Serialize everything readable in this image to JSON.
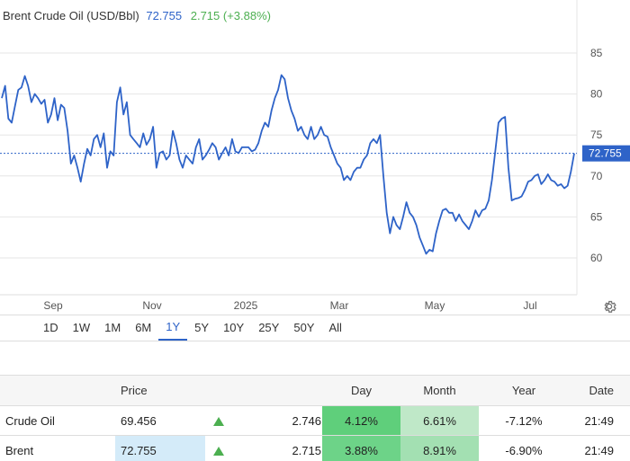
{
  "header": {
    "title": "Brent Crude Oil (USD/Bbl)",
    "price": "72.755",
    "change": "2.715 (+3.88%)"
  },
  "chart_data": {
    "type": "line",
    "title": "Brent Crude Oil (USD/Bbl)",
    "xlabel": "",
    "ylabel": "",
    "ylim": [
      55.5,
      89.5
    ],
    "y_ticks": [
      "85",
      "80",
      "75",
      "70",
      "65",
      "60"
    ],
    "x_ticks": [
      "Sep",
      "Nov",
      "2025",
      "Mar",
      "May",
      "Jul"
    ],
    "last_value_label": "72.755",
    "line_color": "#2e63c8",
    "grid": true,
    "series": [
      {
        "values": [
          79.5,
          81.0,
          77.0,
          76.5,
          78.5,
          80.5,
          80.8,
          82.2,
          81.0,
          79.0,
          80.0,
          79.5,
          78.8,
          79.3,
          76.5,
          77.5,
          79.5,
          76.8,
          78.7,
          78.3,
          75.5,
          71.5,
          72.5,
          71.0,
          69.3,
          71.5,
          73.3,
          72.5,
          74.5,
          75.0,
          73.5,
          75.2,
          71.0,
          73.0,
          72.5,
          79.0,
          80.8,
          77.5,
          79.0,
          75.0,
          74.5,
          74.0,
          73.5,
          75.2,
          73.8,
          74.5,
          76.0,
          71.0,
          72.8,
          73.0,
          72.0,
          72.5,
          75.5,
          74.0,
          72.0,
          71.0,
          72.5,
          72.0,
          71.5,
          73.5,
          74.5,
          72.0,
          72.5,
          73.2,
          74.0,
          73.5,
          72.0,
          72.8,
          73.5,
          72.5,
          74.5,
          73.0,
          72.8,
          73.5,
          73.5,
          73.5,
          73.0,
          73.2,
          74.0,
          75.5,
          76.5,
          76.0,
          78.0,
          79.5,
          80.5,
          82.3,
          81.8,
          79.5,
          78.0,
          77.0,
          75.5,
          76.0,
          75.0,
          74.5,
          76.0,
          74.5,
          75.0,
          76.0,
          75.0,
          74.8,
          73.5,
          72.5,
          71.5,
          71.0,
          69.5,
          70.0,
          69.5,
          70.5,
          71.0,
          71.0,
          72.0,
          72.5,
          74.0,
          74.5,
          74.0,
          75.0,
          70.0,
          65.5,
          63.0,
          65.0,
          64.0,
          63.5,
          65.0,
          66.8,
          65.5,
          65.0,
          64.0,
          62.5,
          61.5,
          60.5,
          61.0,
          60.8,
          63.0,
          64.5,
          65.8,
          66.0,
          65.5,
          65.5,
          64.5,
          65.3,
          64.5,
          64.0,
          63.5,
          64.5,
          65.8,
          65.0,
          65.8,
          66.0,
          67.0,
          69.5,
          73.0,
          76.5,
          77.0,
          77.2,
          71.0,
          67.0,
          67.2,
          67.3,
          67.5,
          68.3,
          69.3,
          69.5,
          70.0,
          70.2,
          69.0,
          69.5,
          70.2,
          69.5,
          69.3,
          68.8,
          69.0,
          68.5,
          68.8,
          70.5,
          72.755
        ]
      }
    ]
  },
  "chart_ui": {
    "settings_icon": "gear-icon"
  },
  "ranges": [
    "1D",
    "1W",
    "1M",
    "6M",
    "1Y",
    "5Y",
    "10Y",
    "25Y",
    "50Y",
    "All"
  ],
  "active_range": "1Y",
  "table": {
    "headers": {
      "name": "",
      "price": "Price",
      "change": "",
      "day": "Day",
      "month": "Month",
      "year": "Year",
      "date": "Date"
    },
    "rows": [
      {
        "name": "Crude Oil",
        "price": "69.456",
        "change": "2.746",
        "day": "4.12%",
        "month": "6.61%",
        "year": "-7.12%",
        "date": "21:49",
        "day_color": "#5fcf7b",
        "month_color": "#bfe8c8"
      },
      {
        "name": "Brent",
        "price": "72.755",
        "change": "2.715",
        "day": "3.88%",
        "month": "8.91%",
        "year": "-6.90%",
        "date": "21:49",
        "day_color": "#6dd388",
        "month_color": "#a3e0b2"
      }
    ]
  }
}
